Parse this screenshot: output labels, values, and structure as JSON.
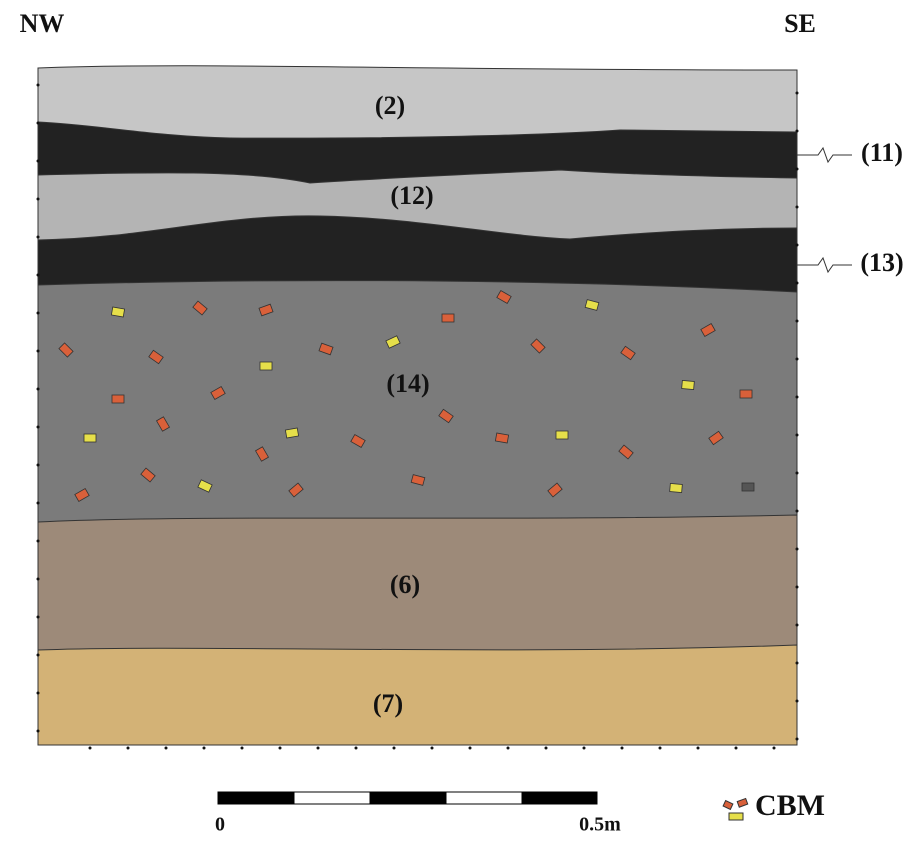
{
  "orientation": {
    "left": "NW",
    "right": "SE"
  },
  "layers": [
    {
      "label": "(2)"
    },
    {
      "label": "(11)"
    },
    {
      "label": "(12)"
    },
    {
      "label": "(13)"
    },
    {
      "label": "(14)"
    },
    {
      "label": "(6)"
    },
    {
      "label": "(7)"
    }
  ],
  "scale": {
    "start": "0",
    "end": "0.5m"
  },
  "legend": {
    "label": "CBM"
  }
}
